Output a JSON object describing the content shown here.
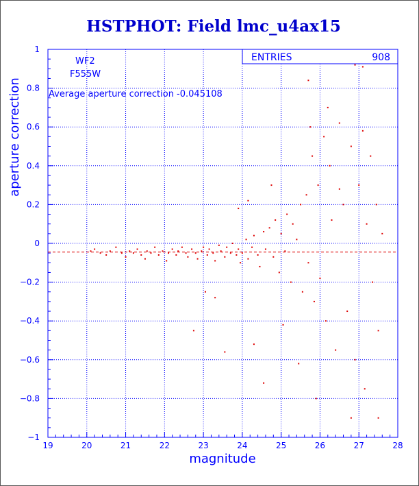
{
  "chart_data": {
    "type": "scatter",
    "title": "HSTPHOT: Field lmc_u4ax15",
    "xlabel": "magnitude",
    "ylabel": "aperture correction",
    "xlim": [
      19,
      28
    ],
    "ylim": [
      -1,
      1
    ],
    "x_ticks": [
      "19",
      "20",
      "21",
      "22",
      "23",
      "24",
      "25",
      "26",
      "27",
      "28"
    ],
    "y_ticks": [
      "-1",
      "-0.8",
      "-0.6",
      "-0.4",
      "-0.2",
      "0",
      "0.2",
      "0.4",
      "0.6",
      "0.8",
      "1"
    ],
    "grid": true,
    "grid_style": "dotted",
    "colors": {
      "points": "#dd0000",
      "average_line": "#dd0000",
      "axes": "#0000ff",
      "title": "#0000cc"
    },
    "annotations": {
      "chip": "WF2",
      "filter": "F555W",
      "average_text": "Average aperture correction -0.045108"
    },
    "stats_box": {
      "label": "ENTRIES",
      "value": "908"
    },
    "reference_line": {
      "y": -0.045108,
      "style": "dashed"
    },
    "series": [
      {
        "points": [
          [
            20.1,
            -0.04
          ],
          [
            20.2,
            -0.03
          ],
          [
            20.35,
            -0.05
          ],
          [
            20.5,
            -0.06
          ],
          [
            20.6,
            -0.04
          ],
          [
            20.75,
            -0.02
          ],
          [
            20.9,
            -0.05
          ],
          [
            21.0,
            -0.07
          ],
          [
            21.1,
            -0.04
          ],
          [
            21.2,
            -0.05
          ],
          [
            21.3,
            -0.03
          ],
          [
            21.4,
            -0.06
          ],
          [
            21.5,
            -0.08
          ],
          [
            21.55,
            -0.04
          ],
          [
            21.65,
            -0.05
          ],
          [
            21.75,
            -0.02
          ],
          [
            21.85,
            -0.06
          ],
          [
            21.95,
            -0.04
          ],
          [
            22.05,
            -0.09
          ],
          [
            22.1,
            -0.05
          ],
          [
            22.2,
            -0.03
          ],
          [
            22.3,
            -0.06
          ],
          [
            22.35,
            -0.04
          ],
          [
            22.45,
            -0.02
          ],
          [
            22.55,
            -0.05
          ],
          [
            22.6,
            -0.07
          ],
          [
            22.7,
            -0.03
          ],
          [
            22.8,
            -0.05
          ],
          [
            22.85,
            -0.08
          ],
          [
            22.95,
            -0.04
          ],
          [
            23.0,
            -0.02
          ],
          [
            23.1,
            -0.06
          ],
          [
            23.15,
            -0.03
          ],
          [
            23.25,
            -0.05
          ],
          [
            23.3,
            -0.09
          ],
          [
            23.4,
            -0.01
          ],
          [
            23.45,
            -0.04
          ],
          [
            23.55,
            -0.07
          ],
          [
            23.6,
            -0.02
          ],
          [
            23.7,
            -0.05
          ],
          [
            23.75,
            0.0
          ],
          [
            23.85,
            -0.06
          ],
          [
            23.9,
            -0.03
          ],
          [
            23.95,
            -0.1
          ],
          [
            24.0,
            -0.05
          ],
          [
            24.1,
            0.02
          ],
          [
            24.15,
            -0.08
          ],
          [
            24.25,
            -0.02
          ],
          [
            24.3,
            0.04
          ],
          [
            24.4,
            -0.06
          ],
          [
            24.45,
            -0.12
          ],
          [
            24.55,
            0.06
          ],
          [
            24.6,
            -0.03
          ],
          [
            24.7,
            0.08
          ],
          [
            24.8,
            -0.07
          ],
          [
            24.85,
            0.12
          ],
          [
            24.95,
            -0.15
          ],
          [
            25.0,
            0.05
          ],
          [
            25.1,
            -0.04
          ],
          [
            25.15,
            0.15
          ],
          [
            25.25,
            -0.2
          ],
          [
            25.3,
            0.1
          ],
          [
            25.4,
            0.02
          ],
          [
            25.5,
            0.2
          ],
          [
            25.55,
            -0.25
          ],
          [
            25.65,
            0.25
          ],
          [
            25.7,
            -0.1
          ],
          [
            25.8,
            0.45
          ],
          [
            25.85,
            -0.3
          ],
          [
            25.95,
            0.3
          ],
          [
            26.0,
            -0.18
          ],
          [
            26.1,
            0.55
          ],
          [
            26.15,
            -0.4
          ],
          [
            26.25,
            0.4
          ],
          [
            26.3,
            0.12
          ],
          [
            26.4,
            -0.55
          ],
          [
            26.5,
            0.62
          ],
          [
            26.6,
            0.2
          ],
          [
            26.7,
            -0.35
          ],
          [
            26.8,
            0.5
          ],
          [
            26.9,
            -0.6
          ],
          [
            27.0,
            0.3
          ],
          [
            27.1,
            0.58
          ],
          [
            27.15,
            -0.75
          ],
          [
            27.2,
            0.1
          ],
          [
            27.3,
            0.45
          ],
          [
            27.35,
            -0.2
          ],
          [
            27.45,
            0.2
          ],
          [
            27.5,
            -0.45
          ],
          [
            27.6,
            0.05
          ],
          [
            23.05,
            -0.25
          ],
          [
            23.3,
            -0.28
          ],
          [
            22.75,
            -0.45
          ],
          [
            23.9,
            0.18
          ],
          [
            24.3,
            -0.52
          ],
          [
            24.55,
            -0.72
          ],
          [
            25.05,
            -0.42
          ],
          [
            25.45,
            -0.62
          ],
          [
            25.9,
            -0.8
          ],
          [
            26.2,
            0.7
          ],
          [
            25.7,
            0.84
          ],
          [
            26.9,
            0.92
          ],
          [
            27.1,
            0.91
          ],
          [
            27.5,
            -0.9
          ],
          [
            26.8,
            -0.9
          ],
          [
            25.75,
            0.6
          ],
          [
            26.5,
            0.28
          ],
          [
            24.75,
            0.3
          ],
          [
            24.15,
            0.22
          ],
          [
            23.55,
            -0.56
          ]
        ]
      }
    ]
  }
}
